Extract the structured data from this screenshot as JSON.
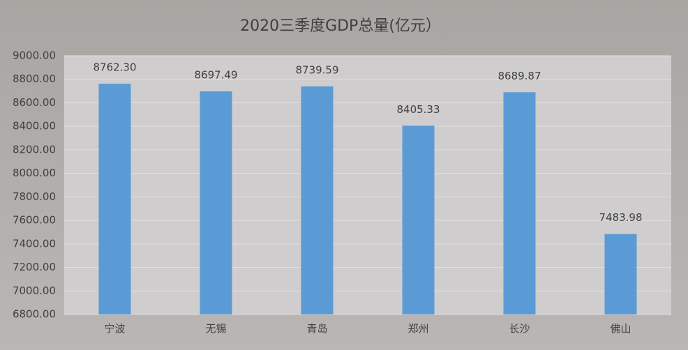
{
  "chart_data": {
    "type": "bar",
    "title": "2020三季度GDP总量(亿元）",
    "categories": [
      "宁波",
      "无锡",
      "青岛",
      "郑州",
      "长沙",
      "佛山"
    ],
    "values": [
      8762.3,
      8697.49,
      8739.59,
      8405.33,
      8689.87,
      7483.98
    ],
    "value_labels": [
      "8762.30",
      "8697.49",
      "8739.59",
      "8405.33",
      "8689.87",
      "7483.98"
    ],
    "color": "#5b9bd5",
    "ylim": [
      6800,
      9000
    ],
    "yticks": [
      {
        "value": 6800,
        "label": "6800.00"
      },
      {
        "value": 7000,
        "label": "7000.00"
      },
      {
        "value": 7200,
        "label": "7200.00"
      },
      {
        "value": 7400,
        "label": "7400.00"
      },
      {
        "value": 7600,
        "label": "7600.00"
      },
      {
        "value": 7800,
        "label": "7800.00"
      },
      {
        "value": 8000,
        "label": "8000.00"
      },
      {
        "value": 8200,
        "label": "8200.00"
      },
      {
        "value": 8400,
        "label": "8400.00"
      },
      {
        "value": 8600,
        "label": "8600.00"
      },
      {
        "value": 8800,
        "label": "8800.00"
      },
      {
        "value": 9000,
        "label": "9000.00"
      }
    ],
    "grid": true
  }
}
